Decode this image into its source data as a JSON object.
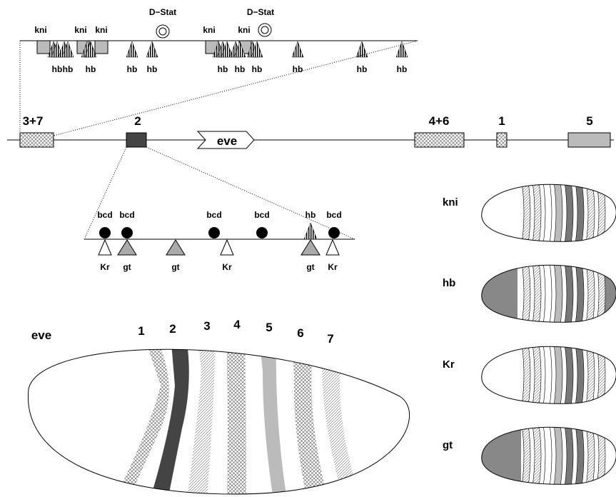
{
  "enhancer_detail": {
    "top_labels": [
      "D−Stat",
      "D−Stat",
      "kni",
      "kni",
      "kni",
      "kni",
      "kni"
    ],
    "bottom_labels": [
      "hb",
      "hb",
      "hb",
      "hb",
      "hb",
      "hb",
      "hb",
      "hb",
      "hb",
      "hb",
      "hb"
    ]
  },
  "gene_map": {
    "elements": [
      "3+7",
      "2",
      "eve",
      "4+6",
      "1",
      "5"
    ]
  },
  "stripe2_enhancer": {
    "activator_labels": [
      "bcd",
      "bcd",
      "bcd",
      "bcd",
      "hb",
      "bcd"
    ],
    "repressor_labels": [
      "Kr",
      "gt",
      "gt",
      "Kr",
      "gt",
      "Kr"
    ]
  },
  "embryo": {
    "label": "eve",
    "stripes": [
      "1",
      "2",
      "3",
      "4",
      "5",
      "6",
      "7"
    ]
  },
  "expression_panels": [
    {
      "label": "kni"
    },
    {
      "label": "hb"
    },
    {
      "label": "Kr"
    },
    {
      "label": "gt"
    }
  ]
}
